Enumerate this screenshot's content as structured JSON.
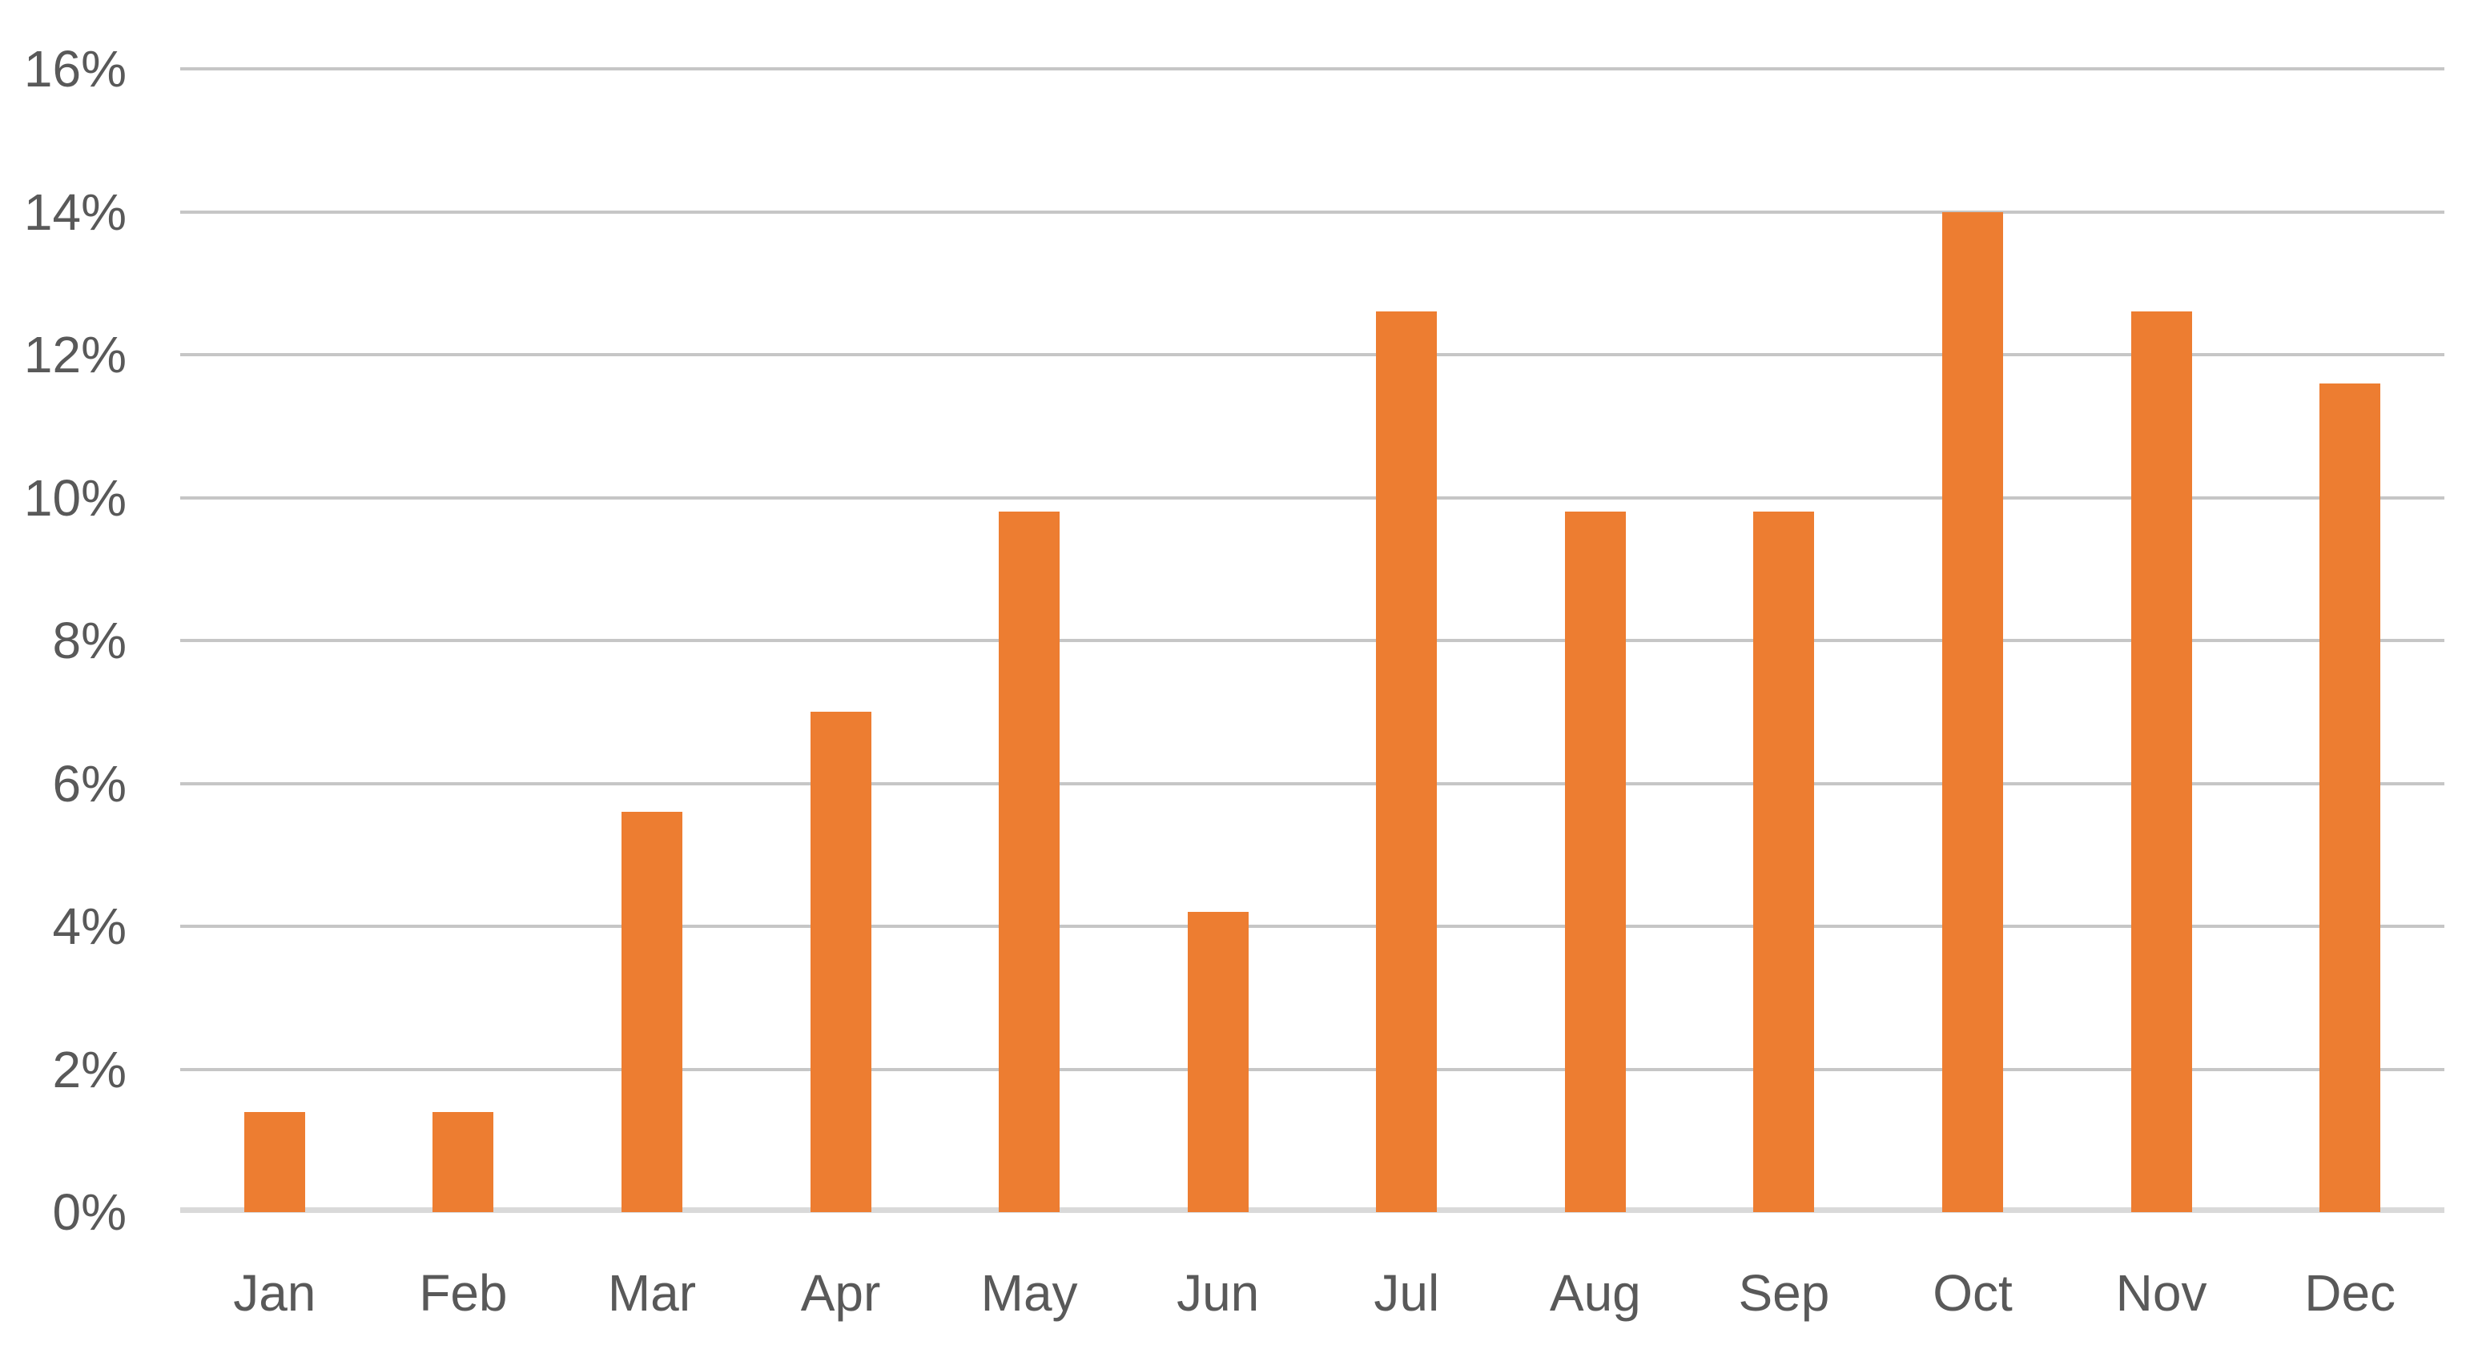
{
  "chart_data": {
    "type": "bar",
    "title": "",
    "xlabel": "",
    "ylabel": "",
    "categories": [
      "Jan",
      "Feb",
      "Mar",
      "Apr",
      "May",
      "Jun",
      "Jul",
      "Aug",
      "Sep",
      "Oct",
      "Nov",
      "Dec"
    ],
    "values": [
      1.4,
      1.4,
      5.6,
      7.0,
      9.8,
      4.2,
      12.6,
      9.8,
      9.8,
      14.0,
      12.6,
      11.6
    ],
    "unit": "%",
    "ylim": [
      0,
      16
    ],
    "ytick_step": 2,
    "ytick_labels": [
      "0%",
      "2%",
      "4%",
      "6%",
      "8%",
      "10%",
      "12%",
      "14%",
      "16%"
    ],
    "grid": true,
    "legend": false,
    "colors": {
      "bar": "#ed7d31",
      "gridline": "#c6c6c6",
      "axis_line": "#d9d9d9",
      "label_text": "#595959",
      "background": "#ffffff"
    }
  }
}
